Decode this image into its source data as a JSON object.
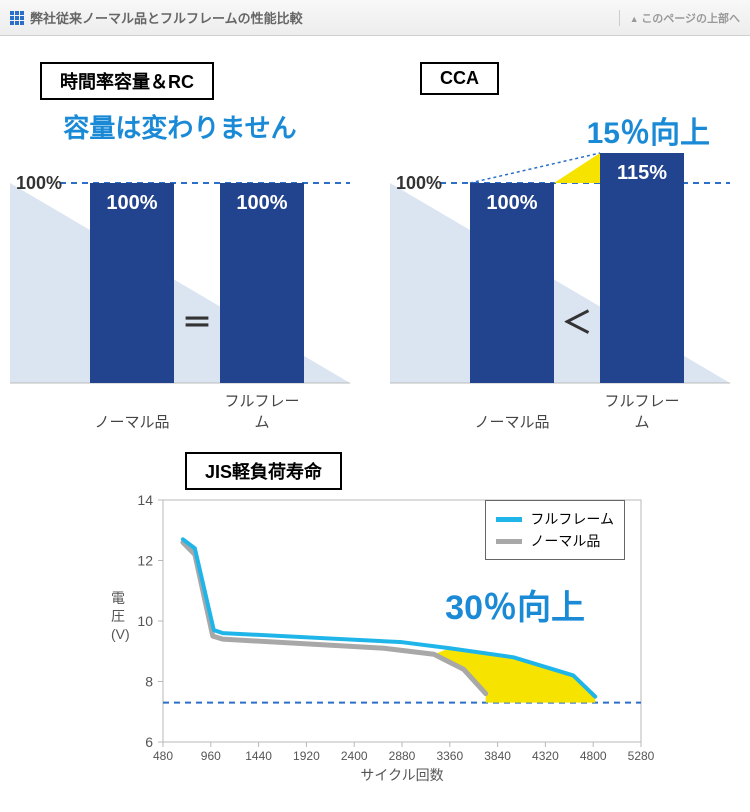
{
  "header": {
    "title": "弊社従来ノーマル品とフルフレームの性能比較",
    "toTop": "このページの上部へ"
  },
  "chart1": {
    "type": "bar",
    "titleTab": "時間率容量＆RC",
    "headline": "容量は変わりません",
    "headlineColor": "#1a8ad6",
    "yAxisLabel": "100%",
    "bars": [
      {
        "label": "ノーマル品",
        "value": 100,
        "valueText": "100%",
        "color": "#22438d"
      },
      {
        "label": "フルフレーム",
        "value": 100,
        "valueText": "100%",
        "color": "#22438d"
      }
    ],
    "operator": "＝",
    "bgTriangleColor": "#dbe4f1",
    "dashedColor": "#2b6fc9",
    "highlightColor": "#f6e400"
  },
  "chart2": {
    "type": "bar",
    "titleTab": "CCA",
    "headline": "15％向上",
    "headlineColor": "#1a8ad6",
    "yAxisLabel": "100%",
    "bars": [
      {
        "label": "ノーマル品",
        "value": 100,
        "valueText": "100%",
        "color": "#22438d"
      },
      {
        "label": "フルフレーム",
        "value": 115,
        "valueText": "115%",
        "color": "#22438d"
      }
    ],
    "operator": "＜",
    "bgTriangleColor": "#dbe4f1",
    "dashedColor": "#2b6fc9",
    "highlightColor": "#f6e400"
  },
  "lineChart": {
    "type": "line",
    "titleTab": "JIS軽負荷寿命",
    "yLabel": "電\n圧\n(V)",
    "xLabel": "サイクル回数",
    "ylim": [
      6,
      14
    ],
    "ytick_step": 2,
    "xlim": [
      480,
      5280
    ],
    "xticks": [
      480,
      960,
      1440,
      1920,
      2400,
      2880,
      3360,
      3840,
      4320,
      4800,
      5280
    ],
    "threshold": 7.3,
    "thresholdColor": "#2b6fc9",
    "gridColor": "#b8b8b8",
    "highlightColor": "#f6e400",
    "series": [
      {
        "name": "フルフレーム",
        "color": "#1fb5e8",
        "width": 4,
        "points": [
          [
            680,
            12.7
          ],
          [
            800,
            12.4
          ],
          [
            990,
            9.7
          ],
          [
            1080,
            9.6
          ],
          [
            2880,
            9.3
          ],
          [
            3360,
            9.1
          ],
          [
            4000,
            8.8
          ],
          [
            4600,
            8.2
          ],
          [
            4820,
            7.5
          ]
        ]
      },
      {
        "name": "ノーマル品",
        "color": "#a8a8a8",
        "width": 5,
        "points": [
          [
            680,
            12.6
          ],
          [
            800,
            12.2
          ],
          [
            980,
            9.5
          ],
          [
            1080,
            9.4
          ],
          [
            2700,
            9.1
          ],
          [
            3200,
            8.9
          ],
          [
            3500,
            8.4
          ],
          [
            3720,
            7.6
          ]
        ]
      }
    ],
    "improveText": "30％向上",
    "improveColor": "#1a8ad6"
  }
}
